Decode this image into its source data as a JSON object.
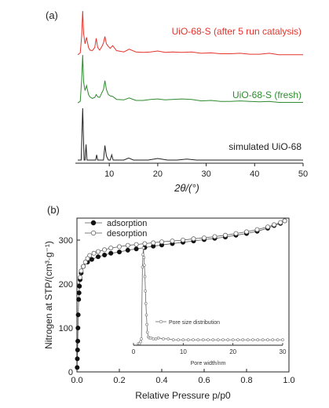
{
  "chart_data": [
    {
      "type": "line",
      "panel_label": "(a)",
      "xlabel": "2θ/(°)",
      "xlim": [
        3,
        50
      ],
      "x_ticks": [
        "10",
        "20",
        "30",
        "40",
        "50"
      ],
      "tick_values": [
        10,
        20,
        30,
        40,
        50
      ],
      "grid": false,
      "series": [
        {
          "name": "UiO-68-S (after 5 run catalysis)",
          "color": "#e5332a",
          "x": [
            3.5,
            4.0,
            4.3,
            4.5,
            4.7,
            5.0,
            5.3,
            5.7,
            6.0,
            6.5,
            7.0,
            7.3,
            7.6,
            8.0,
            8.5,
            8.8,
            9.1,
            9.4,
            9.8,
            10.2,
            10.7,
            11.5,
            13.0,
            14.1,
            15.5,
            17.0,
            18.5,
            20.0,
            21.5,
            23.0,
            25.0,
            27.0,
            29.0,
            31.0,
            33.0,
            35.0,
            37.0,
            39.0,
            41.0,
            43.0,
            45.0,
            47.0,
            50.0
          ],
          "y": [
            0.04,
            0.08,
            0.45,
            1.0,
            0.5,
            0.28,
            0.42,
            0.2,
            0.14,
            0.13,
            0.2,
            0.4,
            0.2,
            0.14,
            0.22,
            0.3,
            0.44,
            0.28,
            0.22,
            0.18,
            0.24,
            0.13,
            0.1,
            0.16,
            0.1,
            0.09,
            0.1,
            0.12,
            0.09,
            0.1,
            0.09,
            0.1,
            0.07,
            0.08,
            0.06,
            0.06,
            0.07,
            0.05,
            0.05,
            0.07,
            0.04,
            0.04,
            0.04
          ]
        },
        {
          "name": "UiO-68-S (fresh)",
          "color": "#2e8b2e",
          "x": [
            3.5,
            4.0,
            4.3,
            4.5,
            4.7,
            5.0,
            5.3,
            5.7,
            6.0,
            6.5,
            7.0,
            7.3,
            7.6,
            8.0,
            8.5,
            8.8,
            9.1,
            9.4,
            9.8,
            10.2,
            10.7,
            11.5,
            13.0,
            14.1,
            15.5,
            17.0,
            18.5,
            20.0,
            21.5,
            23.0,
            25.0,
            27.0,
            29.0,
            31.0,
            33.0,
            35.0,
            37.0,
            39.0,
            41.0,
            43.0,
            45.0,
            47.0,
            50.0
          ],
          "y": [
            0.03,
            0.06,
            0.5,
            1.0,
            0.45,
            0.28,
            0.38,
            0.2,
            0.15,
            0.12,
            0.14,
            0.2,
            0.15,
            0.14,
            0.24,
            0.3,
            0.48,
            0.3,
            0.2,
            0.17,
            0.16,
            0.1,
            0.09,
            0.13,
            0.08,
            0.08,
            0.1,
            0.11,
            0.09,
            0.1,
            0.11,
            0.1,
            0.07,
            0.08,
            0.06,
            0.06,
            0.07,
            0.06,
            0.05,
            0.06,
            0.04,
            0.04,
            0.04
          ]
        },
        {
          "name": "simulated UiO-68",
          "color": "#222222",
          "x": [
            3.5,
            4.2,
            4.5,
            4.8,
            5.0,
            5.2,
            5.4,
            5.6,
            6.0,
            6.5,
            7.2,
            7.4,
            7.6,
            8.0,
            8.8,
            9.1,
            9.4,
            9.8,
            10.2,
            10.5,
            10.8,
            11.5,
            13.0,
            14.0,
            15.0,
            16.0,
            18.0,
            20.0,
            22.0,
            24.0,
            26.0,
            28.0,
            30.0,
            35.0,
            40.0,
            45.0,
            50.0
          ],
          "y": [
            0.0,
            0.0,
            1.0,
            0.0,
            0.0,
            0.3,
            0.0,
            0.0,
            0.0,
            0.0,
            0.0,
            0.1,
            0.0,
            0.0,
            0.0,
            0.28,
            0.08,
            0.0,
            0.0,
            0.1,
            0.0,
            0.0,
            0.0,
            0.04,
            0.0,
            0.0,
            0.0,
            0.03,
            0.0,
            0.0,
            0.02,
            0.0,
            0.0,
            0.0,
            0.0,
            0.0,
            0.0
          ]
        }
      ]
    },
    {
      "type": "scatter",
      "panel_label": "(b)",
      "xlabel": "Relative Pressure p/p0",
      "ylabel": "Nitrogen at STP/(cm³·g⁻¹)",
      "xlim": [
        0,
        1
      ],
      "ylim": [
        0,
        350
      ],
      "x_ticks": [
        "0.0",
        "0.2",
        "0.4",
        "0.6",
        "0.8",
        "1.0"
      ],
      "x_tick_values": [
        0,
        0.2,
        0.4,
        0.6,
        0.8,
        1.0
      ],
      "y_ticks": [
        "0",
        "100",
        "200",
        "300"
      ],
      "y_tick_values": [
        0,
        100,
        200,
        300
      ],
      "legend_position": "top-left",
      "series": [
        {
          "name": "adsorption",
          "marker": "filled-circle",
          "x": [
            0.001,
            0.002,
            0.003,
            0.004,
            0.005,
            0.006,
            0.008,
            0.01,
            0.012,
            0.015,
            0.02,
            0.03,
            0.05,
            0.07,
            0.1,
            0.13,
            0.16,
            0.2,
            0.24,
            0.28,
            0.32,
            0.36,
            0.4,
            0.45,
            0.5,
            0.55,
            0.6,
            0.65,
            0.7,
            0.75,
            0.8,
            0.85,
            0.9,
            0.93,
            0.96,
            0.98
          ],
          "y": [
            10,
            30,
            50,
            70,
            100,
            130,
            165,
            180,
            195,
            210,
            225,
            240,
            250,
            256,
            262,
            266,
            270,
            273,
            277,
            280,
            283,
            286,
            289,
            292,
            295,
            298,
            301,
            304,
            307,
            311,
            315,
            320,
            327,
            333,
            338,
            344
          ]
        },
        {
          "name": "desorption",
          "marker": "open-circle",
          "x": [
            0.98,
            0.96,
            0.93,
            0.9,
            0.85,
            0.8,
            0.75,
            0.7,
            0.65,
            0.6,
            0.55,
            0.5,
            0.45,
            0.4,
            0.36,
            0.32,
            0.28,
            0.24,
            0.2,
            0.16,
            0.13,
            0.1,
            0.08,
            0.06,
            0.05,
            0.04,
            0.03,
            0.02,
            0.015
          ],
          "y": [
            344,
            340,
            335,
            330,
            324,
            319,
            315,
            311,
            308,
            305,
            303,
            300,
            298,
            296,
            294,
            292,
            290,
            288,
            285,
            282,
            278,
            274,
            270,
            265,
            258,
            250,
            240,
            230,
            215
          ]
        }
      ],
      "inset": {
        "type": "line",
        "xlabel": "Pore width/nm",
        "xlim": [
          0,
          30
        ],
        "x_ticks": [
          "0",
          "10",
          "20",
          "30"
        ],
        "x_tick_values": [
          0,
          10,
          20,
          30
        ],
        "series": [
          {
            "name": "Pore size distribution",
            "marker": "open-circle",
            "x": [
              1.0,
              1.2,
              1.4,
              1.6,
              1.8,
              1.9,
              2.0,
              2.1,
              2.2,
              2.3,
              2.4,
              2.5,
              2.6,
              2.7,
              2.8,
              3.0,
              3.2,
              3.5,
              4.0,
              4.5,
              5.0,
              6.0,
              7.0,
              8.0,
              9.0,
              10.0,
              11.0,
              12.0,
              13.0,
              14.0,
              15.0,
              16.0,
              17.0,
              18.0,
              19.0,
              20.0,
              21.0,
              22.0,
              23.0,
              24.0,
              25.0,
              26.0,
              27.0,
              28.0,
              29.0,
              30.0
            ],
            "y": [
              0.0,
              0.0,
              0.02,
              0.05,
              0.8,
              0.93,
              1.0,
              0.9,
              0.82,
              0.7,
              0.55,
              0.42,
              0.3,
              0.2,
              0.12,
              0.07,
              0.06,
              0.06,
              0.05,
              0.05,
              0.06,
              0.05,
              0.05,
              0.04,
              0.04,
              0.04,
              0.04,
              0.04,
              0.04,
              0.04,
              0.04,
              0.04,
              0.04,
              0.04,
              0.04,
              0.04,
              0.04,
              0.04,
              0.04,
              0.04,
              0.04,
              0.04,
              0.04,
              0.04,
              0.04,
              0.04
            ]
          }
        ]
      }
    }
  ]
}
